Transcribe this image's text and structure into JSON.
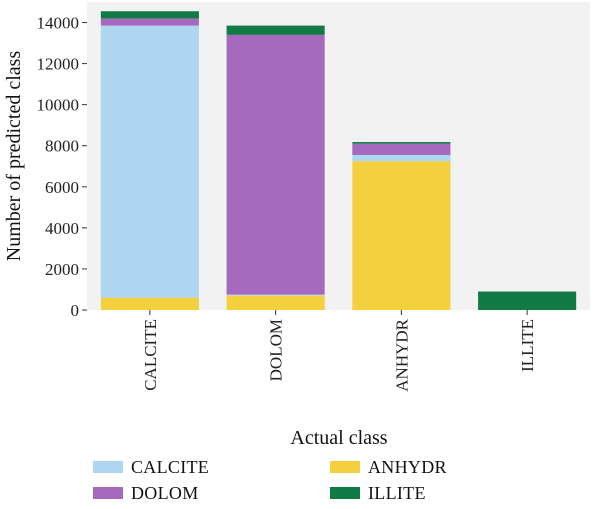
{
  "chart_data": {
    "type": "bar",
    "stacked": true,
    "categories": [
      "CALCITE",
      "DOLOM",
      "ANHYDR",
      "ILLITE"
    ],
    "series": [
      {
        "name": "ANHYDR",
        "color": "#f4d03f",
        "values": [
          600,
          700,
          7250,
          0
        ]
      },
      {
        "name": "CALCITE",
        "color": "#aed6f1",
        "values": [
          13250,
          50,
          300,
          0
        ]
      },
      {
        "name": "DOLOM",
        "color": "#a569bd",
        "values": [
          350,
          12650,
          550,
          0
        ]
      },
      {
        "name": "ILLITE",
        "color": "#117a45",
        "values": [
          350,
          450,
          80,
          900
        ]
      }
    ],
    "xlabel": "Actual class",
    "ylabel": "Number of predicted class",
    "ylim": [
      0,
      15000
    ],
    "yticks": [
      0,
      2000,
      4000,
      6000,
      8000,
      10000,
      12000,
      14000
    ],
    "grid": false,
    "background": "#f2f2f3",
    "legend": {
      "placement": "bottom",
      "order": [
        "CALCITE",
        "ANHYDR",
        "DOLOM",
        "ILLITE"
      ]
    }
  }
}
